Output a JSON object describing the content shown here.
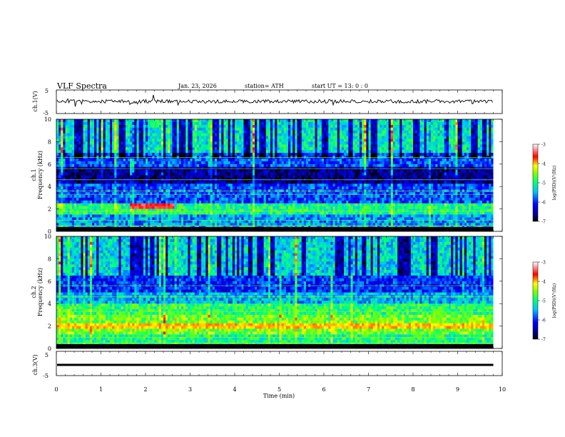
{
  "header": {
    "title": "VLF  Spectra",
    "date": "Jan. 23, 2026",
    "station": "station= ATH",
    "start": "start  UT  =   13: 0  : 0"
  },
  "chart_data": [
    {
      "type": "line",
      "panel": "ch1-waveform",
      "ylabel": "ch.1(V)",
      "ylim": [
        -5,
        5
      ],
      "y_ticks": [
        "5",
        "-5"
      ],
      "xlim": [
        0,
        10
      ],
      "x_ticks": [
        "0",
        "1",
        "2",
        "3",
        "4",
        "5",
        "6",
        "7",
        "8",
        "9",
        "10"
      ],
      "series": [
        {
          "values_summary": "noisy signal around -0.3 V, amplitude about ±1 V, data ends at 9.8 min"
        }
      ]
    },
    {
      "type": "heatmap",
      "panel": "ch1-spectrogram",
      "ylabel": "ch.1\nFrequency (kHz)",
      "ylim": [
        0,
        10
      ],
      "y_ticks": [
        "0",
        "2",
        "4",
        "6",
        "8",
        "10"
      ],
      "xlim": [
        0,
        10
      ],
      "data_end_min": 9.8,
      "colorbar": {
        "label": "log(PSD)(V²/Hz)",
        "ticks": [
          "-3",
          "-4",
          "-5",
          "-6",
          "-7"
        ],
        "range": [
          -7,
          -3
        ]
      },
      "features": [
        {
          "desc": "persistent band",
          "freq_khz": 2.3,
          "from_min": 1.65,
          "to_min": 2.65,
          "level": -3.6
        },
        {
          "desc": "horizontal VLF transmitter lines",
          "freq_khz": [
            0.5,
            1.0,
            1.8,
            3.3,
            3.6,
            4.6,
            5.6,
            6.6
          ]
        }
      ]
    },
    {
      "type": "heatmap",
      "panel": "ch2-spectrogram",
      "ylabel": "ch.2\nFrequency (kHz)",
      "ylim": [
        0,
        10
      ],
      "y_ticks": [
        "0",
        "2",
        "4",
        "6",
        "8",
        "10"
      ],
      "xlim": [
        0,
        10
      ],
      "data_end_min": 9.8,
      "colorbar": {
        "label": "log(PSD)(V²/Hz)",
        "ticks": [
          "-3",
          "-4",
          "-5",
          "-6",
          "-7"
        ],
        "range": [
          -7,
          -3
        ]
      },
      "features": [
        {
          "desc": "strong band",
          "freq_khz": 2.0,
          "from_min": 0,
          "to_min": 9.8,
          "level": -4.2
        },
        {
          "desc": "horizontal lines",
          "freq_khz": [
            0.5,
            1.0,
            3.3,
            4.6,
            5.6
          ]
        }
      ]
    },
    {
      "type": "line",
      "panel": "ch3-waveform",
      "ylabel": "ch.3(V)",
      "ylim": [
        -5,
        5
      ],
      "y_ticks": [
        "5",
        "-5"
      ],
      "xlim": [
        0,
        10
      ],
      "x_ticks": [
        "0",
        "1",
        "2",
        "3",
        "4",
        "5",
        "6",
        "7",
        "8",
        "9",
        "10"
      ],
      "xlabel": "Time  (min)",
      "series": [
        {
          "values_summary": "flat at about 0 V"
        }
      ]
    }
  ]
}
